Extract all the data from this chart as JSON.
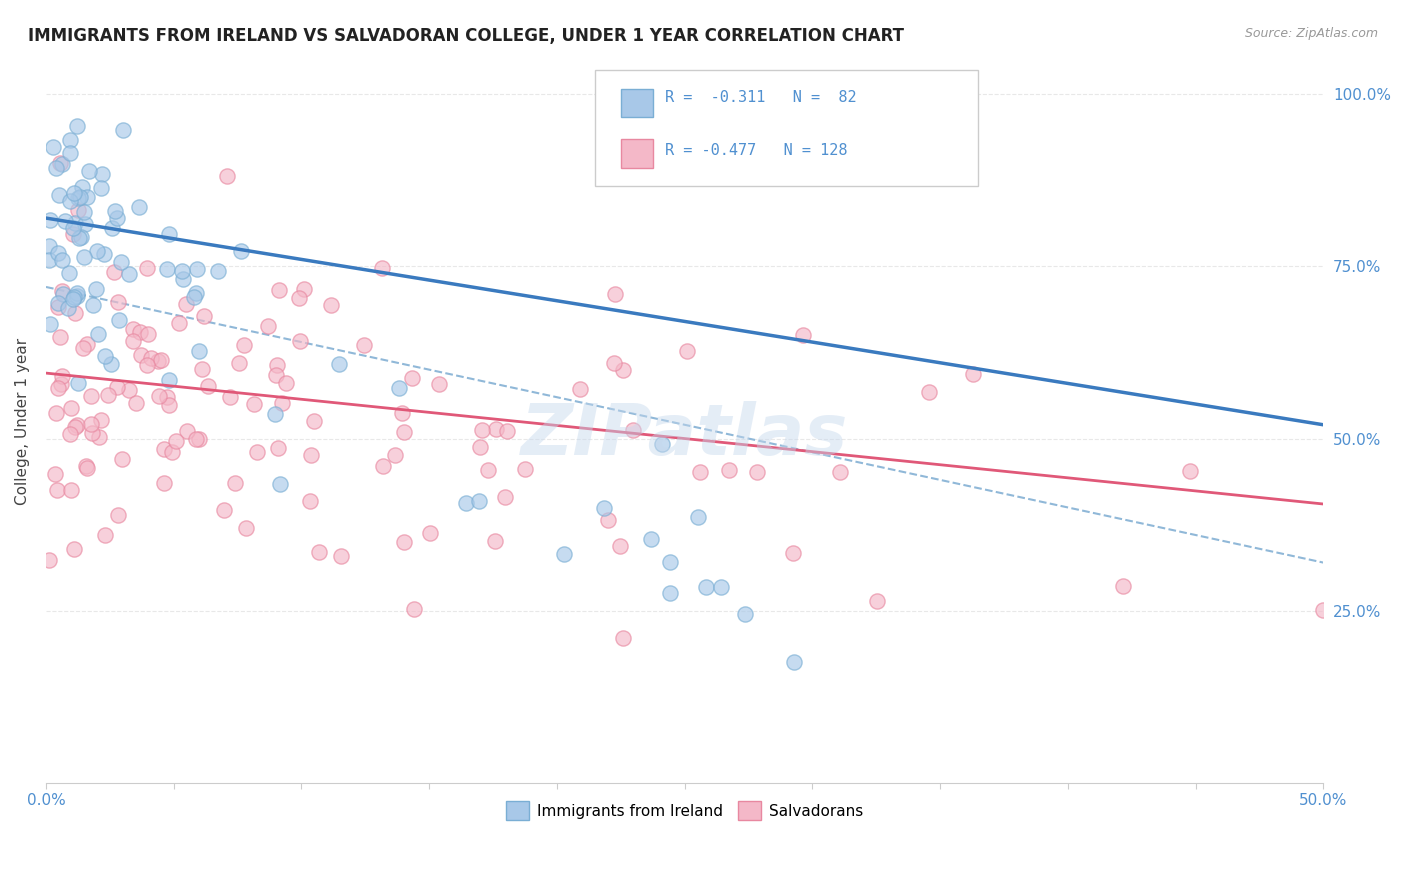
{
  "title": "IMMIGRANTS FROM IRELAND VS SALVADORAN COLLEGE, UNDER 1 YEAR CORRELATION CHART",
  "source_text": "Source: ZipAtlas.com",
  "ylabel": "College, Under 1 year",
  "xlim": [
    0.0,
    0.5
  ],
  "ylim": [
    0.0,
    1.05
  ],
  "ireland_color": "#a8c8e8",
  "ireland_edge_color": "#7aaed4",
  "ireland_line_color": "#3a7abf",
  "salvadoran_color": "#f4b8c8",
  "salvadoran_edge_color": "#e888a0",
  "salvadoran_line_color": "#e05878",
  "dashed_line_color": "#90b8d8",
  "legend_R1": "-0.311",
  "legend_N1": "82",
  "legend_R2": "-0.477",
  "legend_N2": "128",
  "watermark": "ZIPatlas",
  "background_color": "#ffffff",
  "grid_color": "#e8e8e8",
  "tick_color": "#5090d0",
  "title_color": "#222222",
  "ylabel_color": "#444444",
  "source_color": "#999999"
}
